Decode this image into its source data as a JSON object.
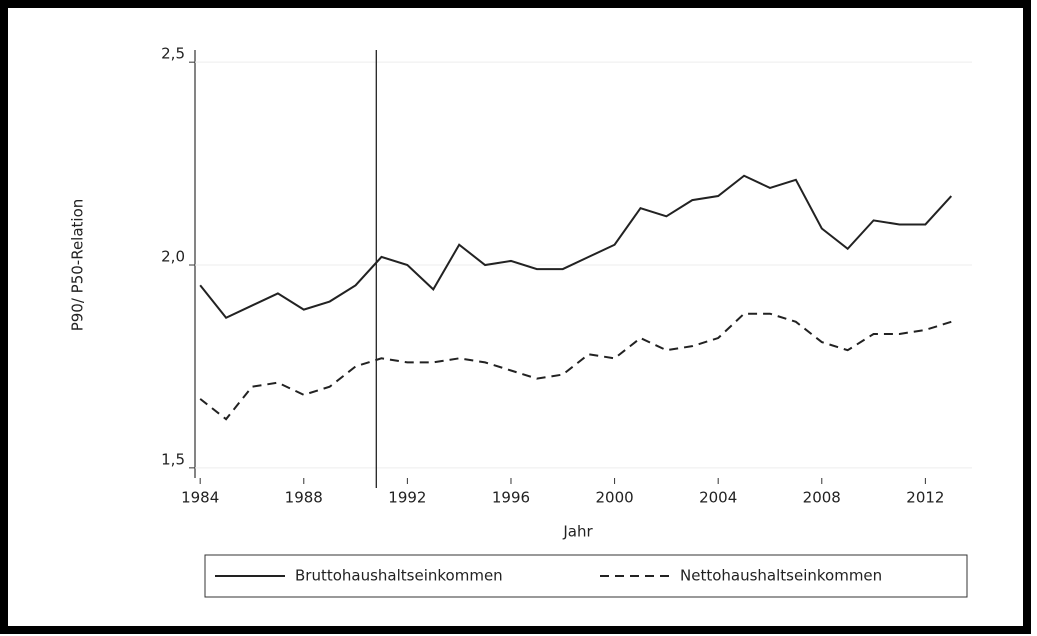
{
  "chart_data": {
    "type": "line",
    "xlabel": "Jahr",
    "ylabel": "P90/ P50-Relation",
    "x": [
      1984,
      1985,
      1986,
      1987,
      1988,
      1989,
      1990,
      1991,
      1992,
      1993,
      1994,
      1995,
      1996,
      1997,
      1998,
      1999,
      2000,
      2001,
      2002,
      2003,
      2004,
      2005,
      2006,
      2007,
      2008,
      2009,
      2010,
      2011,
      2012,
      2013
    ],
    "series": [
      {
        "name": "Bruttohaushaltseinkommen",
        "color": "#222222",
        "linestyle": "solid",
        "values": [
          1.95,
          1.87,
          1.9,
          1.93,
          1.89,
          1.91,
          1.95,
          2.02,
          2.0,
          1.94,
          2.05,
          2.0,
          2.01,
          1.99,
          1.99,
          2.02,
          2.05,
          2.14,
          2.12,
          2.16,
          2.17,
          2.22,
          2.19,
          2.21,
          2.09,
          2.04,
          2.11,
          2.1,
          2.1,
          2.17
        ]
      },
      {
        "name": "Nettohaushaltseinkommen",
        "color": "#222222",
        "linestyle": "dashed",
        "values": [
          1.67,
          1.62,
          1.7,
          1.71,
          1.68,
          1.7,
          1.75,
          1.77,
          1.76,
          1.76,
          1.77,
          1.76,
          1.74,
          1.72,
          1.73,
          1.78,
          1.77,
          1.82,
          1.79,
          1.8,
          1.82,
          1.88,
          1.88,
          1.86,
          1.81,
          1.79,
          1.83,
          1.83,
          1.84,
          1.86
        ]
      }
    ],
    "xlim": [
      1983.8,
      2013.8
    ],
    "xticks": [
      1984,
      1988,
      1992,
      1996,
      2000,
      2004,
      2008,
      2012
    ],
    "ylim": [
      1.475,
      2.53
    ],
    "yticks": [
      {
        "value": 1.5,
        "label": "1,5"
      },
      {
        "value": 2.0,
        "label": "2,0"
      },
      {
        "value": 2.5,
        "label": "2,5"
      }
    ],
    "vline": 1990.8,
    "grid": true,
    "legend": "bottom"
  }
}
